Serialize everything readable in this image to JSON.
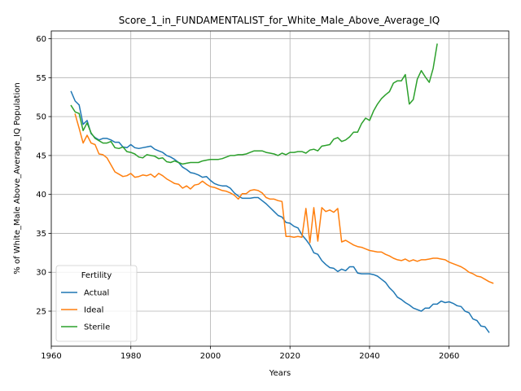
{
  "chart_data": {
    "type": "line",
    "title": "Score_1_in_FUNDAMENTALIST_for_White_Male_Above_Average_IQ",
    "xlabel": "Years",
    "ylabel": "% of White_Male Above_Average_IQ Population",
    "xlim": [
      1960,
      2075
    ],
    "ylim": [
      20.5,
      61.0
    ],
    "xticks": [
      1960,
      1980,
      2000,
      2020,
      2040,
      2060
    ],
    "yticks": [
      25,
      30,
      35,
      40,
      45,
      50,
      55,
      60
    ],
    "grid": true,
    "legend": {
      "title": "Fertility",
      "placement": "lower-left"
    },
    "series": [
      {
        "name": "Actual",
        "color": "#1f77b4",
        "points": [
          [
            1965,
            53.2
          ],
          [
            1966,
            52.0
          ],
          [
            1967,
            51.5
          ],
          [
            1968,
            49.0
          ],
          [
            1969,
            49.5
          ],
          [
            1970,
            47.8
          ],
          [
            1971,
            47.3
          ],
          [
            1972,
            47.0
          ],
          [
            1973,
            47.2
          ],
          [
            1974,
            47.2
          ],
          [
            1975,
            47.0
          ],
          [
            1976,
            46.7
          ],
          [
            1977,
            46.7
          ],
          [
            1978,
            46.1
          ],
          [
            1979,
            46.0
          ],
          [
            1980,
            46.4
          ],
          [
            1981,
            46.0
          ],
          [
            1982,
            45.9
          ],
          [
            1983,
            46.0
          ],
          [
            1984,
            46.1
          ],
          [
            1985,
            46.2
          ],
          [
            1986,
            45.8
          ],
          [
            1987,
            45.6
          ],
          [
            1988,
            45.4
          ],
          [
            1989,
            45.0
          ],
          [
            1990,
            44.8
          ],
          [
            1991,
            44.5
          ],
          [
            1992,
            44.1
          ],
          [
            1993,
            43.5
          ],
          [
            1994,
            43.2
          ],
          [
            1995,
            42.8
          ],
          [
            1996,
            42.7
          ],
          [
            1997,
            42.5
          ],
          [
            1998,
            42.2
          ],
          [
            1999,
            42.3
          ],
          [
            2000,
            41.8
          ],
          [
            2001,
            41.4
          ],
          [
            2002,
            41.2
          ],
          [
            2003,
            41.1
          ],
          [
            2004,
            41.1
          ],
          [
            2005,
            40.8
          ],
          [
            2006,
            40.2
          ],
          [
            2007,
            39.8
          ],
          [
            2008,
            39.5
          ],
          [
            2009,
            39.5
          ],
          [
            2010,
            39.5
          ],
          [
            2011,
            39.6
          ],
          [
            2012,
            39.6
          ],
          [
            2013,
            39.2
          ],
          [
            2014,
            38.8
          ],
          [
            2015,
            38.3
          ],
          [
            2016,
            37.8
          ],
          [
            2017,
            37.3
          ],
          [
            2018,
            37.1
          ],
          [
            2019,
            36.4
          ],
          [
            2020,
            36.3
          ],
          [
            2021,
            35.9
          ],
          [
            2022,
            35.7
          ],
          [
            2023,
            34.8
          ],
          [
            2024,
            34.2
          ],
          [
            2025,
            33.5
          ],
          [
            2026,
            32.5
          ],
          [
            2027,
            32.3
          ],
          [
            2028,
            31.5
          ],
          [
            2029,
            31.0
          ],
          [
            2030,
            30.6
          ],
          [
            2031,
            30.5
          ],
          [
            2032,
            30.1
          ],
          [
            2033,
            30.4
          ],
          [
            2034,
            30.2
          ],
          [
            2035,
            30.7
          ],
          [
            2036,
            30.7
          ],
          [
            2037,
            29.9
          ],
          [
            2038,
            29.8
          ],
          [
            2039,
            29.8
          ],
          [
            2040,
            29.8
          ],
          [
            2041,
            29.7
          ],
          [
            2042,
            29.5
          ],
          [
            2043,
            29.1
          ],
          [
            2044,
            28.7
          ],
          [
            2045,
            28.0
          ],
          [
            2046,
            27.5
          ],
          [
            2047,
            26.8
          ],
          [
            2048,
            26.5
          ],
          [
            2049,
            26.1
          ],
          [
            2050,
            25.8
          ],
          [
            2051,
            25.4
          ],
          [
            2052,
            25.2
          ],
          [
            2053,
            25.0
          ],
          [
            2054,
            25.4
          ],
          [
            2055,
            25.4
          ],
          [
            2056,
            25.9
          ],
          [
            2057,
            25.9
          ],
          [
            2058,
            26.3
          ],
          [
            2059,
            26.1
          ],
          [
            2060,
            26.2
          ],
          [
            2061,
            26.0
          ],
          [
            2062,
            25.7
          ],
          [
            2063,
            25.6
          ],
          [
            2064,
            25.0
          ],
          [
            2065,
            24.8
          ],
          [
            2066,
            24.0
          ],
          [
            2067,
            23.8
          ],
          [
            2068,
            23.1
          ],
          [
            2069,
            23.0
          ],
          [
            2070,
            22.3
          ]
        ]
      },
      {
        "name": "Ideal",
        "color": "#ff7f0e",
        "points": [
          [
            1966,
            50.3
          ],
          [
            1967,
            48.5
          ],
          [
            1968,
            46.6
          ],
          [
            1969,
            47.6
          ],
          [
            1970,
            46.6
          ],
          [
            1971,
            46.4
          ],
          [
            1972,
            45.2
          ],
          [
            1973,
            45.1
          ],
          [
            1974,
            44.7
          ],
          [
            1975,
            43.8
          ],
          [
            1976,
            42.9
          ],
          [
            1977,
            42.6
          ],
          [
            1978,
            42.3
          ],
          [
            1979,
            42.4
          ],
          [
            1980,
            42.7
          ],
          [
            1981,
            42.2
          ],
          [
            1982,
            42.3
          ],
          [
            1983,
            42.5
          ],
          [
            1984,
            42.4
          ],
          [
            1985,
            42.6
          ],
          [
            1986,
            42.2
          ],
          [
            1987,
            42.7
          ],
          [
            1988,
            42.4
          ],
          [
            1989,
            42.0
          ],
          [
            1990,
            41.7
          ],
          [
            1991,
            41.4
          ],
          [
            1992,
            41.3
          ],
          [
            1993,
            40.8
          ],
          [
            1994,
            41.1
          ],
          [
            1995,
            40.7
          ],
          [
            1996,
            41.2
          ],
          [
            1997,
            41.3
          ],
          [
            1998,
            41.7
          ],
          [
            1999,
            41.3
          ],
          [
            2000,
            41.0
          ],
          [
            2001,
            40.9
          ],
          [
            2002,
            40.7
          ],
          [
            2003,
            40.5
          ],
          [
            2004,
            40.4
          ],
          [
            2005,
            40.2
          ],
          [
            2006,
            39.9
          ],
          [
            2007,
            39.4
          ],
          [
            2008,
            40.1
          ],
          [
            2009,
            40.1
          ],
          [
            2010,
            40.5
          ],
          [
            2011,
            40.6
          ],
          [
            2012,
            40.5
          ],
          [
            2013,
            40.2
          ],
          [
            2014,
            39.6
          ],
          [
            2015,
            39.4
          ],
          [
            2016,
            39.4
          ],
          [
            2017,
            39.2
          ],
          [
            2018,
            39.1
          ],
          [
            2019,
            34.6
          ],
          [
            2020,
            34.6
          ],
          [
            2021,
            34.5
          ],
          [
            2022,
            34.6
          ],
          [
            2023,
            34.5
          ],
          [
            2024,
            38.2
          ],
          [
            2025,
            33.8
          ],
          [
            2026,
            38.3
          ],
          [
            2027,
            34.0
          ],
          [
            2028,
            38.3
          ],
          [
            2029,
            37.8
          ],
          [
            2030,
            38.0
          ],
          [
            2031,
            37.7
          ],
          [
            2032,
            38.2
          ],
          [
            2033,
            33.9
          ],
          [
            2034,
            34.1
          ],
          [
            2035,
            33.8
          ],
          [
            2036,
            33.5
          ],
          [
            2037,
            33.3
          ],
          [
            2038,
            33.2
          ],
          [
            2039,
            33.0
          ],
          [
            2040,
            32.8
          ],
          [
            2041,
            32.7
          ],
          [
            2042,
            32.6
          ],
          [
            2043,
            32.6
          ],
          [
            2044,
            32.3
          ],
          [
            2045,
            32.1
          ],
          [
            2046,
            31.8
          ],
          [
            2047,
            31.6
          ],
          [
            2048,
            31.5
          ],
          [
            2049,
            31.7
          ],
          [
            2050,
            31.4
          ],
          [
            2051,
            31.6
          ],
          [
            2052,
            31.4
          ],
          [
            2053,
            31.6
          ],
          [
            2054,
            31.6
          ],
          [
            2055,
            31.7
          ],
          [
            2056,
            31.8
          ],
          [
            2057,
            31.8
          ],
          [
            2058,
            31.7
          ],
          [
            2059,
            31.6
          ],
          [
            2060,
            31.3
          ],
          [
            2061,
            31.1
          ],
          [
            2062,
            30.9
          ],
          [
            2063,
            30.7
          ],
          [
            2064,
            30.4
          ],
          [
            2065,
            30.0
          ],
          [
            2066,
            29.8
          ],
          [
            2067,
            29.5
          ],
          [
            2068,
            29.4
          ],
          [
            2069,
            29.1
          ],
          [
            2070,
            28.8
          ],
          [
            2071,
            28.6
          ]
        ]
      },
      {
        "name": "Sterile",
        "color": "#2ca02c",
        "points": [
          [
            1965,
            51.4
          ],
          [
            1966,
            50.6
          ],
          [
            1967,
            50.4
          ],
          [
            1968,
            48.2
          ],
          [
            1969,
            49.2
          ],
          [
            1970,
            47.9
          ],
          [
            1971,
            47.2
          ],
          [
            1972,
            46.9
          ],
          [
            1973,
            46.6
          ],
          [
            1974,
            46.6
          ],
          [
            1975,
            46.8
          ],
          [
            1976,
            46.0
          ],
          [
            1977,
            45.9
          ],
          [
            1978,
            46.1
          ],
          [
            1979,
            45.5
          ],
          [
            1980,
            45.4
          ],
          [
            1981,
            45.2
          ],
          [
            1982,
            44.8
          ],
          [
            1983,
            44.7
          ],
          [
            1984,
            45.1
          ],
          [
            1985,
            45.0
          ],
          [
            1986,
            44.9
          ],
          [
            1987,
            44.6
          ],
          [
            1988,
            44.7
          ],
          [
            1989,
            44.2
          ],
          [
            1990,
            44.1
          ],
          [
            1991,
            44.3
          ],
          [
            1992,
            44.1
          ],
          [
            1993,
            43.9
          ],
          [
            1994,
            44.0
          ],
          [
            1995,
            44.1
          ],
          [
            1996,
            44.1
          ],
          [
            1997,
            44.1
          ],
          [
            1998,
            44.3
          ],
          [
            1999,
            44.4
          ],
          [
            2000,
            44.5
          ],
          [
            2001,
            44.5
          ],
          [
            2002,
            44.5
          ],
          [
            2003,
            44.6
          ],
          [
            2004,
            44.8
          ],
          [
            2005,
            45.0
          ],
          [
            2006,
            45.0
          ],
          [
            2007,
            45.1
          ],
          [
            2008,
            45.1
          ],
          [
            2009,
            45.2
          ],
          [
            2010,
            45.4
          ],
          [
            2011,
            45.6
          ],
          [
            2012,
            45.6
          ],
          [
            2013,
            45.6
          ],
          [
            2014,
            45.4
          ],
          [
            2015,
            45.3
          ],
          [
            2016,
            45.2
          ],
          [
            2017,
            45.0
          ],
          [
            2018,
            45.3
          ],
          [
            2019,
            45.1
          ],
          [
            2020,
            45.4
          ],
          [
            2021,
            45.4
          ],
          [
            2022,
            45.5
          ],
          [
            2023,
            45.5
          ],
          [
            2024,
            45.3
          ],
          [
            2025,
            45.7
          ],
          [
            2026,
            45.8
          ],
          [
            2027,
            45.6
          ],
          [
            2028,
            46.2
          ],
          [
            2029,
            46.3
          ],
          [
            2030,
            46.4
          ],
          [
            2031,
            47.1
          ],
          [
            2032,
            47.3
          ],
          [
            2033,
            46.8
          ],
          [
            2034,
            47.0
          ],
          [
            2035,
            47.4
          ],
          [
            2036,
            48.0
          ],
          [
            2037,
            48.0
          ],
          [
            2038,
            49.1
          ],
          [
            2039,
            49.8
          ],
          [
            2040,
            49.5
          ],
          [
            2041,
            50.7
          ],
          [
            2042,
            51.6
          ],
          [
            2043,
            52.3
          ],
          [
            2044,
            52.8
          ],
          [
            2045,
            53.2
          ],
          [
            2046,
            54.3
          ],
          [
            2047,
            54.6
          ],
          [
            2048,
            54.6
          ],
          [
            2049,
            55.4
          ],
          [
            2050,
            51.6
          ],
          [
            2051,
            52.2
          ],
          [
            2052,
            54.8
          ],
          [
            2053,
            55.9
          ],
          [
            2054,
            55.1
          ],
          [
            2055,
            54.4
          ],
          [
            2056,
            56.2
          ],
          [
            2057,
            59.3
          ]
        ]
      }
    ]
  }
}
